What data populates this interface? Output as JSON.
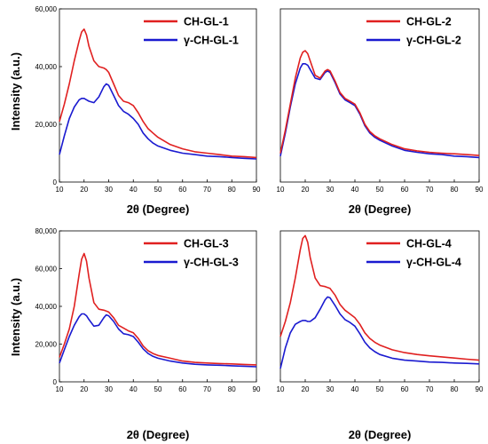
{
  "figure": {
    "xlabel": "2θ (Degree)",
    "ylabel": "Intensity (a.u.)"
  },
  "colors": {
    "series_a": "#e02020",
    "series_b": "#1a1ad0"
  },
  "chart_data": [
    {
      "type": "line",
      "xlabel": "2θ (Degree)",
      "ylabel": "Intensity (a.u.)",
      "xlim": [
        10,
        90
      ],
      "ylim": [
        0,
        60000
      ],
      "xticks": [
        "10",
        "20",
        "30",
        "40",
        "50",
        "60",
        "70",
        "80",
        "90"
      ],
      "yticks": [
        "0",
        "20,000",
        "40,000",
        "60,000"
      ],
      "legend": "top-right",
      "x": [
        10,
        12,
        14,
        16,
        18,
        19,
        20,
        21,
        22,
        24,
        26,
        28,
        29,
        30,
        32,
        34,
        36,
        38,
        40,
        42,
        44,
        46,
        48,
        50,
        55,
        60,
        65,
        70,
        75,
        80,
        85,
        90
      ],
      "series": [
        {
          "name": "CH-GL-1",
          "color": "#e02020",
          "values": [
            21000,
            27000,
            34000,
            42000,
            49000,
            52000,
            53000,
            51000,
            47000,
            42000,
            40000,
            39500,
            39000,
            38000,
            34000,
            30000,
            28000,
            27500,
            26500,
            24000,
            21000,
            18500,
            17000,
            15500,
            13000,
            11500,
            10500,
            10000,
            9500,
            9000,
            8800,
            8500
          ]
        },
        {
          "name": "γ-CH-GL-1",
          "color": "#1a1ad0",
          "values": [
            9500,
            16000,
            22000,
            26000,
            28500,
            29000,
            29000,
            28500,
            28000,
            27500,
            29500,
            33000,
            34000,
            33500,
            30000,
            26500,
            24500,
            23500,
            22000,
            20000,
            17000,
            15000,
            13500,
            12500,
            11000,
            10000,
            9500,
            9000,
            8800,
            8500,
            8200,
            8000
          ]
        }
      ]
    },
    {
      "type": "line",
      "xlabel": "2θ (Degree)",
      "ylabel": "",
      "xlim": [
        10,
        90
      ],
      "ylim": [
        0,
        60000
      ],
      "xticks": [
        "10",
        "20",
        "30",
        "40",
        "50",
        "60",
        "70",
        "80",
        "90"
      ],
      "yticks": [],
      "legend": "top-right",
      "x": [
        10,
        12,
        14,
        16,
        18,
        19,
        20,
        21,
        22,
        24,
        26,
        28,
        29,
        30,
        32,
        34,
        36,
        38,
        40,
        42,
        44,
        46,
        48,
        50,
        55,
        60,
        65,
        70,
        75,
        80,
        85,
        90
      ],
      "series": [
        {
          "name": "CH-GL-2",
          "color": "#e02020",
          "values": [
            10000,
            18000,
            27000,
            36000,
            43000,
            45000,
            45500,
            44500,
            42000,
            37000,
            36000,
            38500,
            39000,
            38500,
            35000,
            31000,
            29000,
            28000,
            27000,
            24000,
            20000,
            17500,
            16000,
            15000,
            13000,
            11500,
            10800,
            10300,
            10000,
            9800,
            9500,
            9200
          ]
        },
        {
          "name": "γ-CH-GL-2",
          "color": "#1a1ad0",
          "values": [
            9000,
            17000,
            26000,
            34000,
            39500,
            41000,
            41000,
            40500,
            39000,
            36000,
            35500,
            38000,
            38500,
            38000,
            34500,
            30500,
            28500,
            27500,
            26500,
            23500,
            19500,
            17000,
            15500,
            14500,
            12500,
            11000,
            10300,
            9800,
            9500,
            9000,
            8800,
            8500
          ]
        }
      ]
    },
    {
      "type": "line",
      "xlabel": "2θ (Degree)",
      "ylabel": "Intensity (a.u.)",
      "xlim": [
        10,
        90
      ],
      "ylim": [
        0,
        80000
      ],
      "xticks": [
        "10",
        "20",
        "30",
        "40",
        "50",
        "60",
        "70",
        "80",
        "90"
      ],
      "yticks": [
        "0",
        "20,000",
        "40,000",
        "60,000",
        "80,000"
      ],
      "legend": "top-right",
      "x": [
        10,
        12,
        14,
        16,
        18,
        19,
        20,
        21,
        22,
        24,
        26,
        28,
        29,
        30,
        32,
        34,
        36,
        38,
        40,
        42,
        44,
        46,
        48,
        50,
        55,
        60,
        65,
        70,
        75,
        80,
        85,
        90
      ],
      "series": [
        {
          "name": "CH-GL-3",
          "color": "#e02020",
          "values": [
            13000,
            20000,
            28000,
            40000,
            57000,
            65000,
            68000,
            64000,
            55000,
            42000,
            38500,
            38000,
            37500,
            37000,
            34000,
            30000,
            28500,
            27000,
            26000,
            23000,
            19000,
            16500,
            15000,
            14000,
            12500,
            11000,
            10300,
            10000,
            9700,
            9500,
            9200,
            9000
          ]
        },
        {
          "name": "γ-CH-GL-3",
          "color": "#1a1ad0",
          "values": [
            10000,
            17000,
            24000,
            30000,
            34500,
            36000,
            36000,
            35000,
            33000,
            29500,
            30000,
            34000,
            35500,
            35000,
            32000,
            28000,
            25500,
            25000,
            24000,
            21000,
            17500,
            15000,
            13500,
            12500,
            11000,
            10000,
            9300,
            9000,
            8800,
            8500,
            8300,
            8000
          ]
        }
      ]
    },
    {
      "type": "line",
      "xlabel": "2θ (Degree)",
      "ylabel": "",
      "xlim": [
        10,
        90
      ],
      "ylim": [
        0,
        80000
      ],
      "xticks": [
        "10",
        "20",
        "30",
        "40",
        "50",
        "60",
        "70",
        "80",
        "90"
      ],
      "yticks": [],
      "legend": "top-right",
      "x": [
        10,
        12,
        14,
        16,
        18,
        19,
        20,
        21,
        22,
        24,
        26,
        28,
        29,
        30,
        32,
        34,
        36,
        38,
        40,
        42,
        44,
        46,
        48,
        50,
        55,
        60,
        65,
        70,
        75,
        80,
        85,
        90
      ],
      "series": [
        {
          "name": "CH-GL-4",
          "color": "#e02020",
          "values": [
            24000,
            32000,
            42000,
            55000,
            70000,
            76000,
            77500,
            74000,
            66000,
            55000,
            51000,
            50500,
            50000,
            49500,
            46000,
            41000,
            38000,
            36000,
            34000,
            30500,
            26000,
            23000,
            21000,
            19500,
            17000,
            15500,
            14500,
            13800,
            13200,
            12600,
            12000,
            11500
          ]
        },
        {
          "name": "γ-CH-GL-4",
          "color": "#1a1ad0",
          "values": [
            7000,
            18000,
            26000,
            30500,
            32000,
            32500,
            32500,
            32000,
            32000,
            34000,
            38500,
            43500,
            45000,
            44500,
            40500,
            36000,
            33000,
            31500,
            29500,
            25500,
            21000,
            18000,
            16000,
            14500,
            12500,
            11500,
            11000,
            10500,
            10300,
            10000,
            9800,
            9500
          ]
        }
      ]
    }
  ]
}
